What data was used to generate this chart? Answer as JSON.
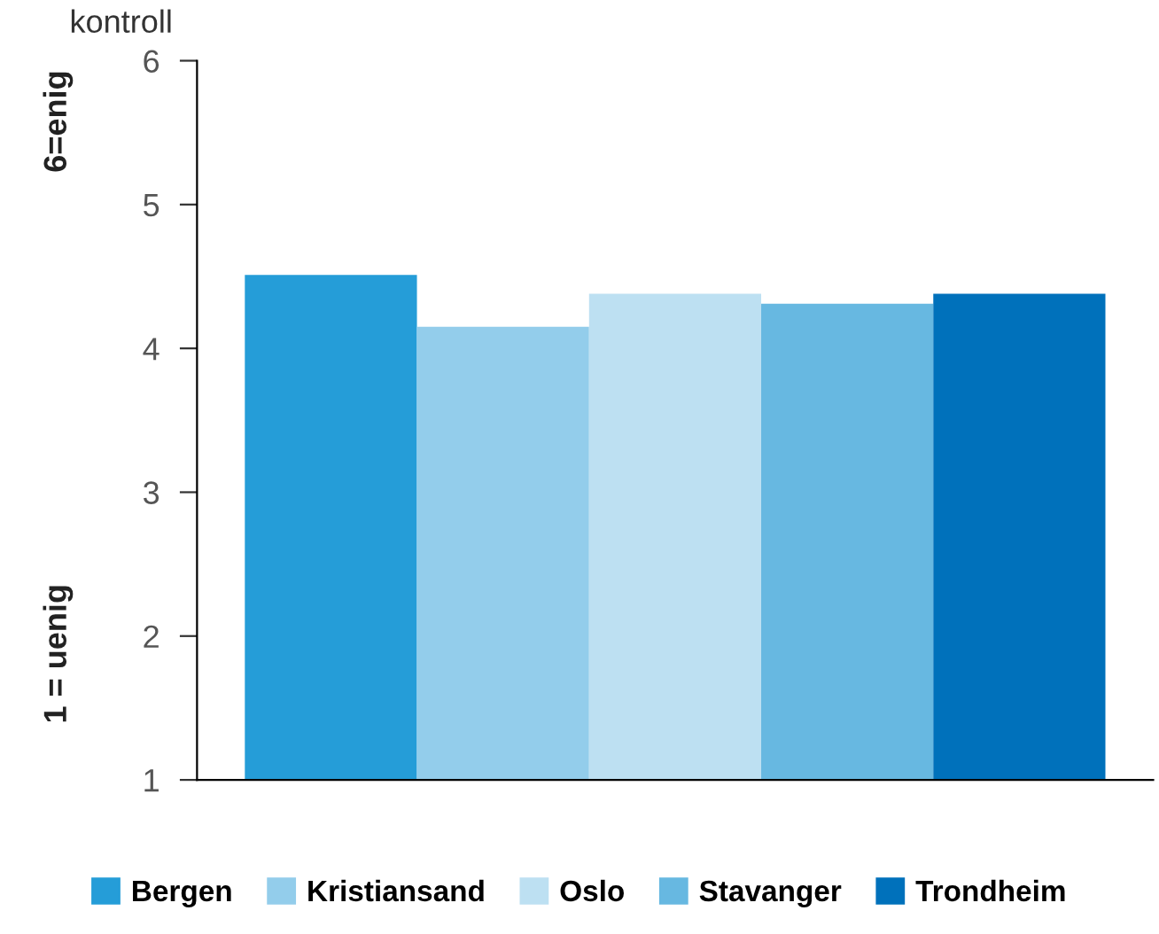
{
  "chart_data": {
    "type": "bar",
    "title": "kontroll",
    "categories": [
      null
    ],
    "series": [
      {
        "name": "Bergen",
        "color": "#259dd8",
        "values": [
          4.51
        ]
      },
      {
        "name": "Kristiansand",
        "color": "#93cdeb",
        "values": [
          4.15
        ]
      },
      {
        "name": "Oslo",
        "color": "#bde0f2",
        "values": [
          4.38
        ]
      },
      {
        "name": "Stavanger",
        "color": "#67b8e1",
        "values": [
          4.31
        ]
      },
      {
        "name": "Trondheim",
        "color": "#0071bb",
        "values": [
          4.38
        ]
      }
    ],
    "annotations": [
      "6=enig",
      "1 = uenig"
    ],
    "ylim": [
      1,
      6
    ],
    "yticks": [
      1,
      2,
      3,
      4,
      5,
      6
    ],
    "grid": false,
    "legend": "bottom"
  }
}
